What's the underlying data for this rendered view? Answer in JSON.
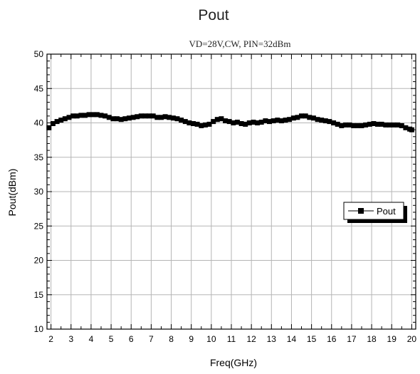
{
  "chart_data": {
    "type": "line",
    "title": "Pout",
    "subtitle": "VD=28V,CW, PIN=32dBm",
    "xlabel": "Freq(GHz)",
    "ylabel": "Pout(dBm)",
    "xlim": [
      1.8,
      20.2
    ],
    "ylim": [
      10,
      50
    ],
    "xticks": [
      "2",
      "3",
      "4",
      "5",
      "6",
      "7",
      "8",
      "9",
      "10",
      "11",
      "12",
      "13",
      "14",
      "15",
      "16",
      "17",
      "18",
      "19",
      "20"
    ],
    "yticks": [
      "10",
      "15",
      "20",
      "25",
      "30",
      "35",
      "40",
      "45",
      "50"
    ],
    "grid": true,
    "legend": {
      "position": "right",
      "entries": [
        "Pout"
      ]
    },
    "series": [
      {
        "name": "Pout",
        "marker": "square",
        "color": "#000000",
        "x": [
          1.9,
          2.1,
          2.3,
          2.5,
          2.7,
          2.9,
          3.1,
          3.3,
          3.5,
          3.7,
          3.9,
          4.1,
          4.3,
          4.5,
          4.7,
          4.9,
          5.1,
          5.3,
          5.5,
          5.7,
          5.9,
          6.1,
          6.3,
          6.5,
          6.7,
          6.9,
          7.1,
          7.3,
          7.5,
          7.7,
          7.9,
          8.1,
          8.3,
          8.5,
          8.7,
          8.9,
          9.1,
          9.3,
          9.5,
          9.7,
          9.9,
          10.1,
          10.3,
          10.5,
          10.7,
          10.9,
          11.1,
          11.3,
          11.5,
          11.7,
          11.9,
          12.1,
          12.3,
          12.5,
          12.7,
          12.9,
          13.1,
          13.3,
          13.5,
          13.7,
          13.9,
          14.1,
          14.3,
          14.5,
          14.7,
          14.9,
          15.1,
          15.3,
          15.5,
          15.7,
          15.9,
          16.1,
          16.3,
          16.5,
          16.7,
          16.9,
          17.1,
          17.3,
          17.5,
          17.7,
          17.9,
          18.1,
          18.3,
          18.5,
          18.7,
          18.9,
          19.1,
          19.3,
          19.5,
          19.7,
          19.9,
          20.0
        ],
        "values": [
          39.3,
          39.9,
          40.2,
          40.4,
          40.6,
          40.8,
          41.0,
          41.0,
          41.1,
          41.1,
          41.2,
          41.2,
          41.2,
          41.1,
          41.0,
          40.8,
          40.6,
          40.6,
          40.5,
          40.6,
          40.7,
          40.8,
          40.9,
          41.0,
          41.0,
          41.0,
          41.0,
          40.8,
          40.8,
          40.9,
          40.8,
          40.7,
          40.6,
          40.4,
          40.2,
          40.0,
          39.9,
          39.8,
          39.6,
          39.7,
          39.8,
          40.2,
          40.5,
          40.6,
          40.3,
          40.2,
          40.0,
          40.1,
          39.9,
          39.8,
          40.0,
          40.1,
          40.0,
          40.1,
          40.3,
          40.2,
          40.3,
          40.4,
          40.3,
          40.4,
          40.5,
          40.7,
          40.8,
          41.0,
          41.0,
          40.8,
          40.7,
          40.5,
          40.4,
          40.3,
          40.2,
          40.0,
          39.8,
          39.6,
          39.7,
          39.7,
          39.6,
          39.6,
          39.6,
          39.7,
          39.8,
          39.9,
          39.8,
          39.8,
          39.7,
          39.7,
          39.7,
          39.7,
          39.6,
          39.3,
          39.1,
          39.0
        ]
      }
    ]
  }
}
